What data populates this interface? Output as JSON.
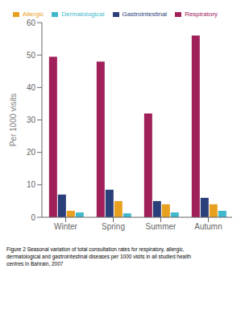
{
  "chart_data": {
    "type": "bar",
    "categories": [
      "Winter",
      "Spring",
      "Summer",
      "Autumn"
    ],
    "series": [
      {
        "name": "Respiratory",
        "color": "#A0205A",
        "values": [
          49.5,
          48.0,
          32.0,
          56.0
        ]
      },
      {
        "name": "Gastrointestinal",
        "color": "#2B3F7A",
        "values": [
          7.0,
          8.5,
          5.0,
          6.0
        ]
      },
      {
        "name": "Allergic",
        "color": "#E8A020",
        "values": [
          2.0,
          5.0,
          4.0,
          4.0
        ]
      },
      {
        "name": "Dermatological",
        "color": "#40B8CC",
        "values": [
          1.5,
          1.2,
          1.5,
          2.0
        ]
      }
    ],
    "ylabel": "Per 1000 visits",
    "ylim": [
      0,
      60
    ],
    "yticks": [
      0,
      10,
      20,
      30,
      40,
      50,
      60
    ],
    "grid": false,
    "legend": "top",
    "caption": "Figure 2 Seasonal variation of total consultation rates for respiratory, allergic,\ndermatological and gastrointestinal diseases per 1000 visits in all studied health\ncentres in Bahrain, 2007"
  }
}
